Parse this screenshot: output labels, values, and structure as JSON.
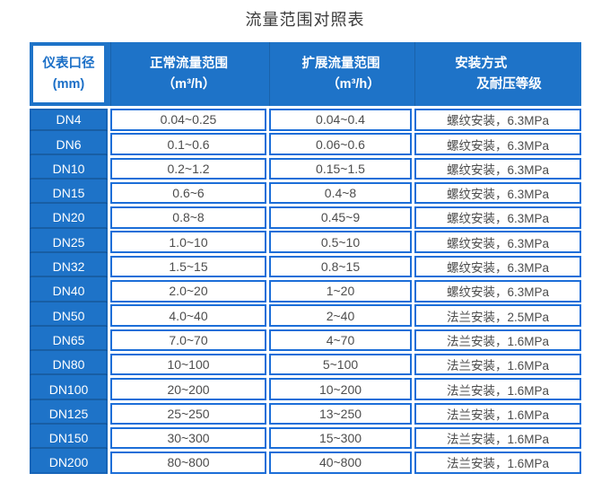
{
  "title": "流量范围对照表",
  "colors": {
    "header_blue": "#1e73c8",
    "cell_border_blue": "#1c6ed8",
    "first_column_blue": "#1e73c8",
    "header_first_cell_text": "#1b6fc7",
    "data_text": "#4d4d4d",
    "title_text": "#3b3b3b"
  },
  "table": {
    "headers": [
      {
        "line1": "仪表口径",
        "line2": "(mm)"
      },
      {
        "line1": "正常流量范围",
        "line2": "（m³/h）"
      },
      {
        "line1": "扩展流量范围",
        "line2": "（m³/h）"
      },
      {
        "line1": "安装方式",
        "line2": "及耐压等级"
      }
    ],
    "rows": [
      {
        "dn": "DN4",
        "normal": "0.04~0.25",
        "extended": "0.04~0.4",
        "install": "螺纹安装，6.3MPa"
      },
      {
        "dn": "DN6",
        "normal": "0.1~0.6",
        "extended": "0.06~0.6",
        "install": "螺纹安装，6.3MPa"
      },
      {
        "dn": "DN10",
        "normal": "0.2~1.2",
        "extended": "0.15~1.5",
        "install": "螺纹安装，6.3MPa"
      },
      {
        "dn": "DN15",
        "normal": "0.6~6",
        "extended": "0.4~8",
        "install": "螺纹安装，6.3MPa"
      },
      {
        "dn": "DN20",
        "normal": "0.8~8",
        "extended": "0.45~9",
        "install": "螺纹安装，6.3MPa"
      },
      {
        "dn": "DN25",
        "normal": "1.0~10",
        "extended": "0.5~10",
        "install": "螺纹安装，6.3MPa"
      },
      {
        "dn": "DN32",
        "normal": "1.5~15",
        "extended": "0.8~15",
        "install": "螺纹安装，6.3MPa"
      },
      {
        "dn": "DN40",
        "normal": "2.0~20",
        "extended": "1~20",
        "install": "螺纹安装，6.3MPa"
      },
      {
        "dn": "DN50",
        "normal": "4.0~40",
        "extended": "2~40",
        "install": "法兰安装，2.5MPa"
      },
      {
        "dn": "DN65",
        "normal": "7.0~70",
        "extended": "4~70",
        "install": "法兰安装，1.6MPa"
      },
      {
        "dn": "DN80",
        "normal": "10~100",
        "extended": "5~100",
        "install": "法兰安装，1.6MPa"
      },
      {
        "dn": "DN100",
        "normal": "20~200",
        "extended": "10~200",
        "install": "法兰安装，1.6MPa"
      },
      {
        "dn": "DN125",
        "normal": "25~250",
        "extended": "13~250",
        "install": "法兰安装，1.6MPa"
      },
      {
        "dn": "DN150",
        "normal": "30~300",
        "extended": "15~300",
        "install": "法兰安装，1.6MPa"
      },
      {
        "dn": "DN200",
        "normal": "80~800",
        "extended": "40~800",
        "install": "法兰安装，1.6MPa"
      }
    ]
  },
  "chart_data": {
    "type": "table",
    "title": "流量范围对照表",
    "columns": [
      "仪表口径 (mm)",
      "正常流量范围（m³/h）",
      "扩展流量范围（m³/h）",
      "安装方式及耐压等级"
    ],
    "rows": [
      [
        "DN4",
        "0.04~0.25",
        "0.04~0.4",
        "螺纹安装，6.3MPa"
      ],
      [
        "DN6",
        "0.1~0.6",
        "0.06~0.6",
        "螺纹安装，6.3MPa"
      ],
      [
        "DN10",
        "0.2~1.2",
        "0.15~1.5",
        "螺纹安装，6.3MPa"
      ],
      [
        "DN15",
        "0.6~6",
        "0.4~8",
        "螺纹安装，6.3MPa"
      ],
      [
        "DN20",
        "0.8~8",
        "0.45~9",
        "螺纹安装，6.3MPa"
      ],
      [
        "DN25",
        "1.0~10",
        "0.5~10",
        "螺纹安装，6.3MPa"
      ],
      [
        "DN32",
        "1.5~15",
        "0.8~15",
        "螺纹安装，6.3MPa"
      ],
      [
        "DN40",
        "2.0~20",
        "1~20",
        "螺纹安装，6.3MPa"
      ],
      [
        "DN50",
        "4.0~40",
        "2~40",
        "法兰安装，2.5MPa"
      ],
      [
        "DN65",
        "7.0~70",
        "4~70",
        "法兰安装，1.6MPa"
      ],
      [
        "DN80",
        "10~100",
        "5~100",
        "法兰安装，1.6MPa"
      ],
      [
        "DN100",
        "20~200",
        "10~200",
        "法兰安装，1.6MPa"
      ],
      [
        "DN125",
        "25~250",
        "13~250",
        "法兰安装，1.6MPa"
      ],
      [
        "DN150",
        "30~300",
        "15~300",
        "法兰安装，1.6MPa"
      ],
      [
        "DN200",
        "80~800",
        "40~800",
        "法兰安装，1.6MPa"
      ]
    ]
  }
}
